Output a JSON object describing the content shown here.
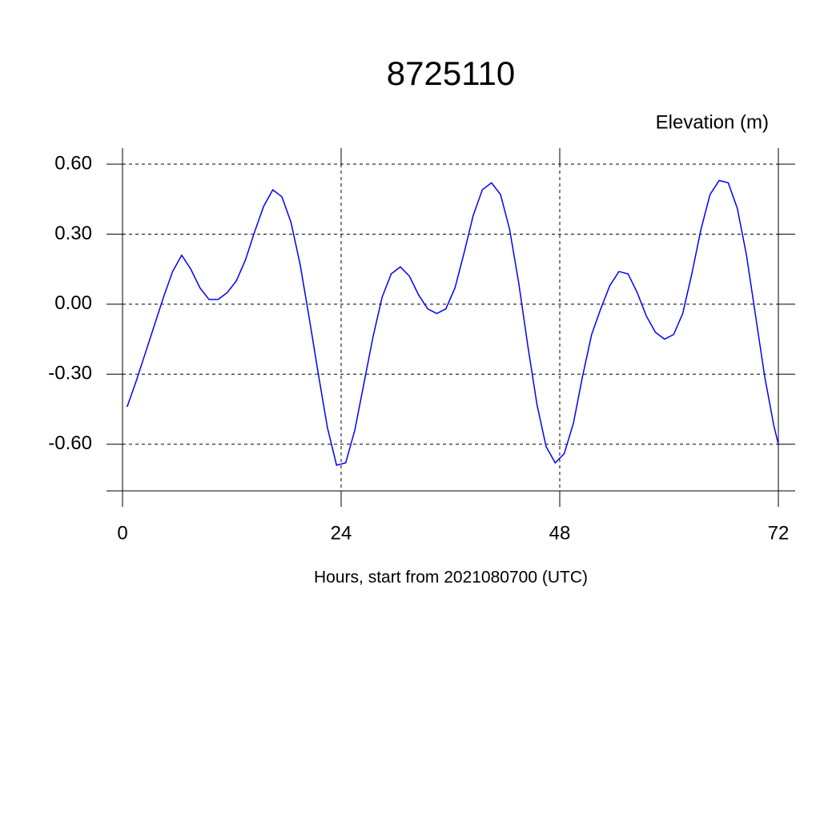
{
  "chart_data": {
    "type": "line",
    "title": "8725110",
    "subtitle": "Elevation (m)",
    "xlabel": "Hours, start from 2021080700 (UTC)",
    "xlim": [
      0,
      72
    ],
    "xticks": [
      0,
      24,
      48,
      72
    ],
    "ylim": [
      -0.8,
      0.6
    ],
    "yticks": [
      {
        "value": -0.6,
        "label": "-0.60"
      },
      {
        "value": -0.3,
        "label": "-0.30"
      },
      {
        "value": 0,
        "label": "0.00"
      },
      {
        "value": 0.3,
        "label": "0.30"
      },
      {
        "value": 0.6,
        "label": "0.60"
      }
    ],
    "grid": true,
    "x": [
      0.5,
      1.5,
      2.5,
      3.5,
      4.5,
      5.5,
      6.5,
      7.5,
      8.5,
      9.5,
      10.5,
      11.5,
      12.5,
      13.5,
      14.5,
      15.5,
      16.5,
      17.5,
      18.5,
      19.5,
      20.5,
      21.5,
      22.5,
      23.5,
      24.5,
      25.5,
      26.5,
      27.5,
      28.5,
      29.5,
      30.5,
      31.5,
      32.5,
      33.5,
      34.5,
      35.5,
      36.5,
      37.5,
      38.5,
      39.5,
      40.5,
      41.5,
      42.5,
      43.5,
      44.5,
      45.5,
      46.5,
      47.5,
      48.5,
      49.5,
      50.5,
      51.5,
      52.5,
      53.5,
      54.5,
      55.5,
      56.5,
      57.5,
      58.5,
      59.5,
      60.5,
      61.5,
      62.5,
      63.5,
      64.5,
      65.5,
      66.5,
      67.5,
      68.5,
      69.5,
      70.5,
      71.5,
      72
    ],
    "series": [
      {
        "name": "Elevation",
        "color": "#0000ff",
        "values": [
          -0.44,
          -0.33,
          -0.21,
          -0.09,
          0.03,
          0.14,
          0.21,
          0.15,
          0.07,
          0.02,
          0.02,
          0.05,
          0.1,
          0.19,
          0.31,
          0.42,
          0.49,
          0.46,
          0.35,
          0.17,
          -0.06,
          -0.3,
          -0.53,
          -0.69,
          -0.68,
          -0.54,
          -0.34,
          -0.14,
          0.03,
          0.13,
          0.16,
          0.12,
          0.04,
          -0.02,
          -0.04,
          -0.02,
          0.07,
          0.22,
          0.38,
          0.49,
          0.52,
          0.47,
          0.32,
          0.09,
          -0.18,
          -0.43,
          -0.61,
          -0.68,
          -0.64,
          -0.51,
          -0.31,
          -0.13,
          -0.02,
          0.08,
          0.14,
          0.13,
          0.05,
          -0.05,
          -0.12,
          -0.15,
          -0.13,
          -0.04,
          0.13,
          0.32,
          0.47,
          0.53,
          0.52,
          0.41,
          0.21,
          -0.05,
          -0.31,
          -0.52,
          -0.6
        ]
      }
    ]
  }
}
